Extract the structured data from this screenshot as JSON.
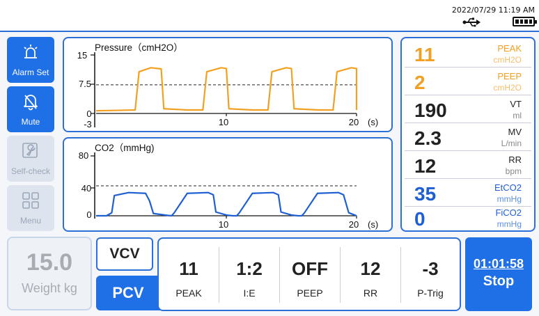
{
  "status": {
    "datetime": "2022/07/29 11:19  AM",
    "usb_icon": "usb-icon",
    "battery_icon": "battery-icon",
    "battery_level": 1.0
  },
  "sidebar": {
    "items": [
      {
        "label": "Alarm Set",
        "icon": "alarm-light-icon",
        "state": "active"
      },
      {
        "label": "Mute",
        "icon": "bell-icon",
        "state": "active"
      },
      {
        "label": "Self-check",
        "icon": "wrench-icon",
        "state": "disabled"
      },
      {
        "label": "Menu",
        "icon": "grid-icon",
        "state": "disabled"
      }
    ]
  },
  "pressure_chart": {
    "title": "Pressure（cmH2O）",
    "y_ticks": [
      "15",
      "7.5",
      "0",
      "-3"
    ],
    "x_ticks": [
      "10",
      "20"
    ],
    "x_unit": "(s)",
    "color": "#f2a022"
  },
  "co2_chart": {
    "title": "CO2（mmHg)",
    "y_ticks": [
      "80",
      "40",
      "0"
    ],
    "x_ticks": [
      "10",
      "20"
    ],
    "x_unit": "(s)",
    "color": "#1e5fd3"
  },
  "chart_data": [
    {
      "type": "line",
      "title": "Pressure（cmH2O）",
      "xlabel": "(s)",
      "ylabel": "",
      "xlim": [
        0,
        20
      ],
      "ylim": [
        -3,
        15
      ],
      "reference_line": 7.5,
      "x": [
        0,
        1.7,
        3.0,
        3.3,
        4.2,
        5.0,
        5.2,
        7.0,
        8.2,
        8.5,
        9.6,
        10.0,
        10.2,
        12.0,
        13.2,
        13.5,
        14.6,
        15.0,
        15.2,
        17.1,
        18.2,
        18.5,
        19.6,
        20.0,
        20.2
      ],
      "series": [
        {
          "values": [
            1,
            1.1,
            1.2,
            10.8,
            11.8,
            11.5,
            1.5,
            1.2,
            1.2,
            10.8,
            11.8,
            11.6,
            1.5,
            1.2,
            1.2,
            10.8,
            11.8,
            11.6,
            1.5,
            1.2,
            1.2,
            10.8,
            11.8,
            11.6,
            1.2
          ]
        }
      ]
    },
    {
      "type": "line",
      "title": "CO2（mmHg)",
      "xlabel": "(s)",
      "ylabel": "",
      "xlim": [
        0,
        20
      ],
      "ylim": [
        0,
        80
      ],
      "reference_line": 40,
      "x": [
        0,
        0.8,
        1.2,
        1.4,
        2.5,
        3.8,
        4.1,
        4.4,
        5.5,
        5.8,
        6.0,
        7.0,
        8.6,
        9.0,
        9.2,
        10.0,
        10.5,
        10.8,
        11.0,
        12.0,
        13.6,
        14.0,
        14.2,
        15.0,
        15.5,
        15.8,
        16.0,
        17.0,
        18.6,
        19.0,
        19.4,
        20.0
      ],
      "series": [
        {
          "values": [
            0,
            0,
            4,
            27,
            31,
            30,
            20,
            3,
            0.5,
            0,
            4,
            30,
            31,
            28,
            5,
            1,
            0,
            0,
            4,
            30,
            31,
            28,
            5,
            1,
            0,
            0,
            4,
            30,
            31,
            28,
            4,
            0
          ]
        }
      ]
    }
  ],
  "vitals": [
    {
      "value": "11",
      "name": "PEAK",
      "unit": "cmH2O",
      "color": "orange"
    },
    {
      "value": "2",
      "name": "PEEP",
      "unit": "cmH2O",
      "color": "orange"
    },
    {
      "value": "190",
      "name": "VT",
      "unit": "ml",
      "color": "black"
    },
    {
      "value": "2.3",
      "name": "MV",
      "unit": "L/min",
      "color": "black"
    },
    {
      "value": "12",
      "name": "RR",
      "unit": "bpm",
      "color": "black"
    },
    {
      "value": "35",
      "name": "EtCO2",
      "unit": "mmHg",
      "color": "blue"
    },
    {
      "value": "0",
      "name": "FiCO2",
      "unit": "mmHg",
      "color": "blue"
    }
  ],
  "weight": {
    "value": "15.0",
    "label": "Weight kg"
  },
  "modes": {
    "vcv": "VCV",
    "pcv": "PCV"
  },
  "settings": [
    {
      "value": "11",
      "label": "PEAK"
    },
    {
      "value": "1:2",
      "label": "I:E"
    },
    {
      "value": "OFF",
      "label": "PEEP"
    },
    {
      "value": "12",
      "label": "RR"
    },
    {
      "value": "-3",
      "label": "P-Trig"
    }
  ],
  "timer": {
    "time": "01:01:58",
    "action": "Stop"
  }
}
